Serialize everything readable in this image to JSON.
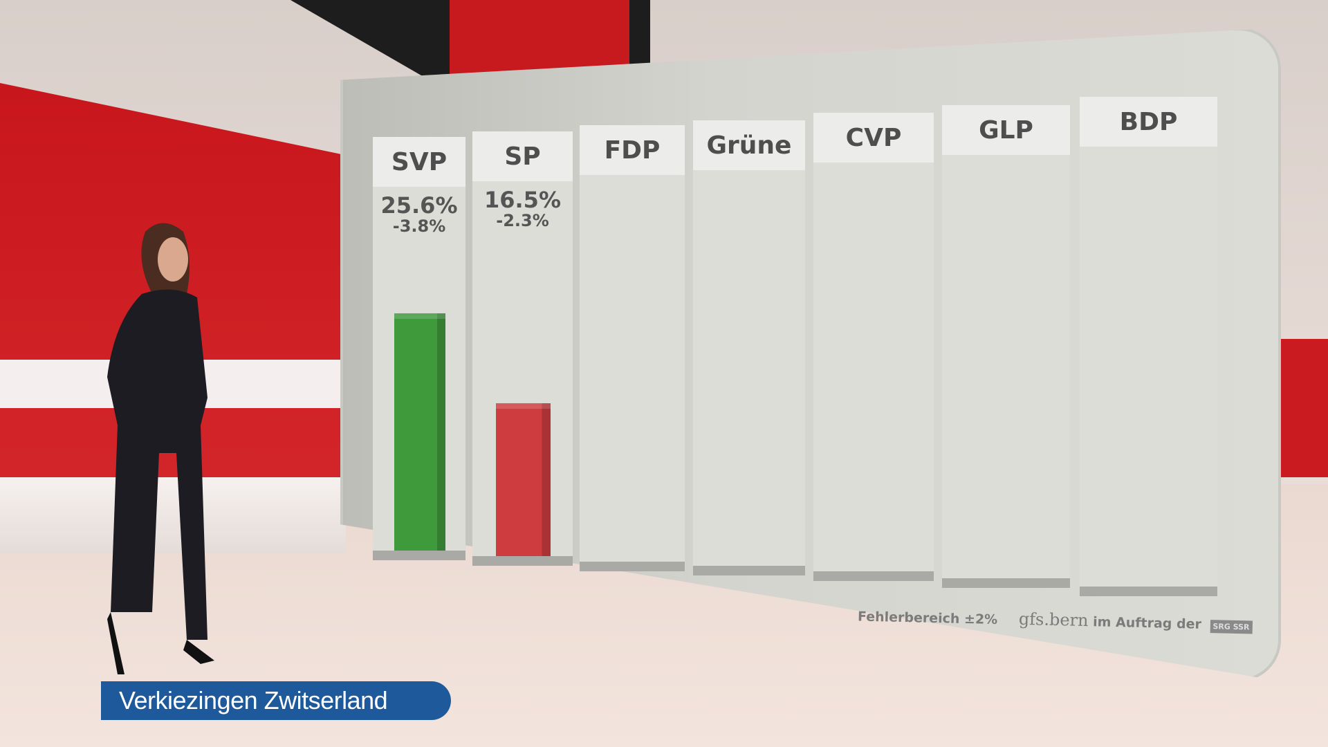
{
  "chart_data": {
    "type": "bar",
    "categories": [
      "SVP",
      "SP",
      "FDP",
      "Grüne",
      "CVP",
      "GLP",
      "BDP"
    ],
    "values": [
      25.6,
      16.5,
      null,
      null,
      null,
      null,
      null
    ],
    "value_labels": [
      "25.6%",
      "16.5%",
      "",
      "",
      "",
      "",
      ""
    ],
    "change_labels": [
      "-3.8%",
      "-2.3%",
      "",
      "",
      "",
      "",
      ""
    ],
    "colors": [
      "#3f9a3c",
      "#cf3c40",
      null,
      null,
      null,
      null,
      null
    ],
    "title": "",
    "xlabel": "",
    "ylabel": ""
  },
  "footer": {
    "error_margin": "Fehlerbereich ±2%",
    "source_logo": "gfs.bern",
    "source_text": "im Auftrag der",
    "broadcaster_logo": "SRG SSR"
  },
  "lower_third": {
    "title": "Verkiezingen Zwitserland"
  }
}
